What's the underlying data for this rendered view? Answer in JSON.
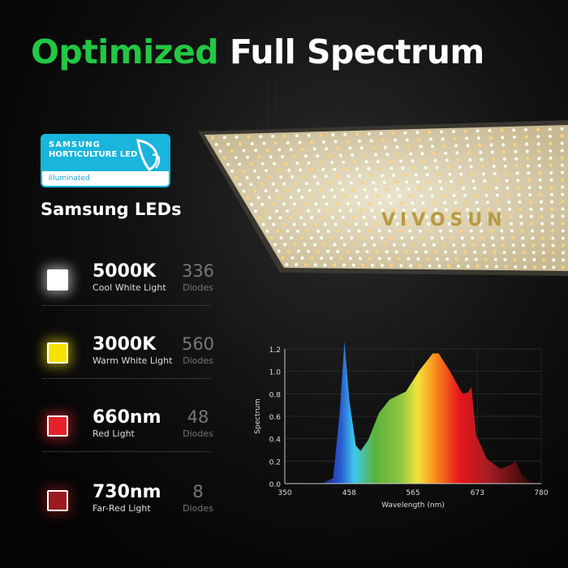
{
  "header": {
    "title_green": "Optimized",
    "title_white": "Full Spectrum"
  },
  "badge": {
    "brand": "SAMSUNG",
    "line": "HORTICULTURE LED",
    "footer": "Illuminated",
    "icon": "leaf-icon",
    "color": "#19b5dc"
  },
  "subtitle": "Samsung LEDs",
  "panel": {
    "brand": "VIVOSUN"
  },
  "leds": [
    {
      "value": "5000K",
      "label": "Cool White Light",
      "count": "336",
      "unit": "Diodes",
      "color": "#ffffff"
    },
    {
      "value": "3000K",
      "label": "Warm White Light",
      "count": "560",
      "unit": "Diodes",
      "color": "#f4e300"
    },
    {
      "value": "660nm",
      "label": "Red Light",
      "count": "48",
      "unit": "Diodes",
      "color": "#e8202a"
    },
    {
      "value": "730nm",
      "label": "Far-Red Light",
      "count": "8",
      "unit": "Diodes",
      "color": "#9c1a1e"
    }
  ],
  "chart_data": {
    "type": "area",
    "xlabel": "Wavelength (nm)",
    "ylabel": "Spectrum",
    "xlim": [
      350,
      780
    ],
    "ylim": [
      0,
      1.2
    ],
    "xticks": [
      "350",
      "458",
      "565",
      "673",
      "780"
    ],
    "yticks": [
      "0.0",
      "0.2",
      "0.4",
      "0.6",
      "0.8",
      "1.0",
      "1.2"
    ],
    "grid": true,
    "x": [
      350,
      412,
      431,
      442,
      450,
      458,
      469,
      477,
      490,
      508,
      526,
      553,
      576,
      598,
      608,
      626,
      648,
      657,
      663,
      671,
      689,
      712,
      730,
      737,
      748,
      766,
      780
    ],
    "y": [
      0,
      0,
      0.05,
      0.63,
      1.27,
      0.75,
      0.34,
      0.29,
      0.39,
      0.63,
      0.75,
      0.82,
      1.01,
      1.16,
      1.16,
      1.01,
      0.8,
      0.81,
      0.86,
      0.43,
      0.22,
      0.13,
      0.17,
      0.2,
      0.07,
      0,
      0
    ]
  }
}
